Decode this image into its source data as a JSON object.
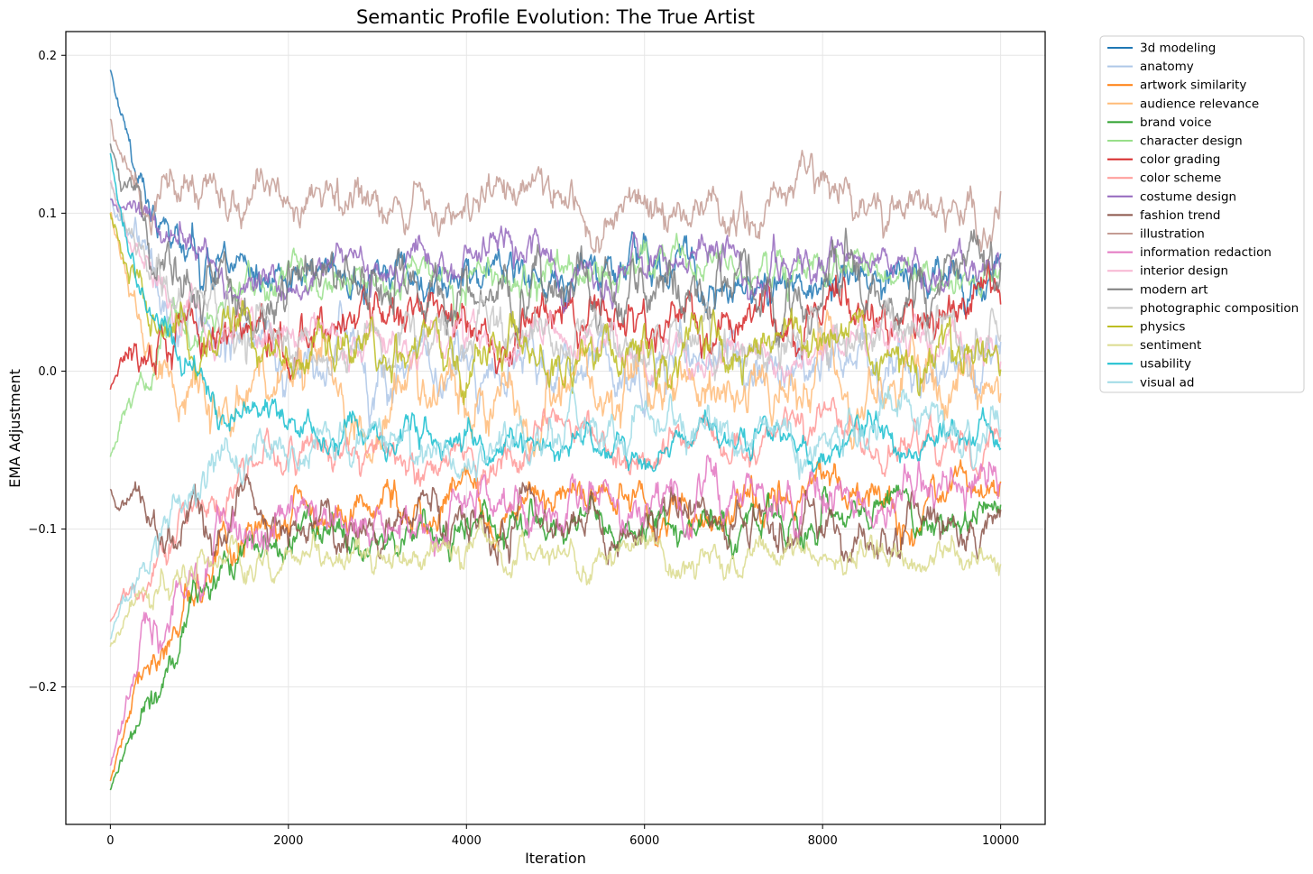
{
  "chart_data": {
    "type": "line",
    "title": "Semantic Profile Evolution: The True Artist",
    "xlabel": "Iteration",
    "ylabel": "EMA Adjustment",
    "xlim": [
      -500,
      10500
    ],
    "ylim": [
      -0.287,
      0.215
    ],
    "xticks": [
      0,
      2000,
      4000,
      6000,
      8000,
      10000
    ],
    "xtick_labels": [
      "0",
      "2000",
      "4000",
      "6000",
      "8000",
      "10000"
    ],
    "yticks": [
      -0.2,
      -0.1,
      0.0,
      0.1,
      0.2
    ],
    "ytick_labels": [
      "−0.2",
      "−0.1",
      "0.0",
      "0.1",
      "0.2"
    ],
    "grid": true,
    "legend_position": "outside-right-top",
    "x_range": [
      0,
      10000
    ],
    "series": [
      {
        "name": "3d modeling",
        "color": "#1f77b4",
        "start": 0.19,
        "level": 0.06,
        "noise": 0.009,
        "tau": 500,
        "seed": 11
      },
      {
        "name": "anatomy",
        "color": "#aec7e8",
        "start": 0.11,
        "level": 0.0,
        "noise": 0.011,
        "tau": 800,
        "seed": 12
      },
      {
        "name": "artwork similarity",
        "color": "#ff7f0e",
        "start": -0.26,
        "level": -0.085,
        "noise": 0.009,
        "tau": 700,
        "seed": 13
      },
      {
        "name": "audience relevance",
        "color": "#ffbb78",
        "start": 0.1,
        "level": -0.01,
        "noise": 0.012,
        "tau": 400,
        "seed": 14
      },
      {
        "name": "brand voice",
        "color": "#2ca02c",
        "start": -0.265,
        "level": -0.095,
        "noise": 0.008,
        "tau": 900,
        "seed": 15
      },
      {
        "name": "character design",
        "color": "#98df8a",
        "start": -0.055,
        "level": 0.065,
        "noise": 0.008,
        "tau": 700,
        "seed": 16
      },
      {
        "name": "color grading",
        "color": "#d62728",
        "start": -0.012,
        "level": 0.03,
        "noise": 0.01,
        "tau": 250,
        "seed": 17
      },
      {
        "name": "color scheme",
        "color": "#ff9896",
        "start": -0.16,
        "level": -0.045,
        "noise": 0.008,
        "tau": 900,
        "seed": 18
      },
      {
        "name": "costume design",
        "color": "#9467bd",
        "start": 0.11,
        "level": 0.065,
        "noise": 0.008,
        "tau": 500,
        "seed": 19
      },
      {
        "name": "fashion trend",
        "color": "#8c564b",
        "start": -0.075,
        "level": -0.098,
        "noise": 0.009,
        "tau": 300,
        "seed": 20
      },
      {
        "name": "illustration",
        "color": "#c49c94",
        "start": 0.16,
        "level": 0.105,
        "noise": 0.01,
        "tau": 200,
        "seed": 21
      },
      {
        "name": "information redaction",
        "color": "#e377c2",
        "start": -0.25,
        "level": -0.085,
        "noise": 0.01,
        "tau": 700,
        "seed": 22
      },
      {
        "name": "interior design",
        "color": "#f7b6d2",
        "start": 0.12,
        "level": 0.015,
        "noise": 0.008,
        "tau": 500,
        "seed": 23
      },
      {
        "name": "modern art",
        "color": "#7f7f7f",
        "start": 0.145,
        "level": 0.05,
        "noise": 0.012,
        "tau": 400,
        "seed": 24
      },
      {
        "name": "photographic composition",
        "color": "#c7c7c7",
        "start": 0.12,
        "level": 0.02,
        "noise": 0.01,
        "tau": 500,
        "seed": 25
      },
      {
        "name": "physics",
        "color": "#bcbd22",
        "start": 0.1,
        "level": 0.015,
        "noise": 0.01,
        "tau": 300,
        "seed": 26
      },
      {
        "name": "sentiment",
        "color": "#dbdb8d",
        "start": -0.175,
        "level": -0.118,
        "noise": 0.007,
        "tau": 400,
        "seed": 27
      },
      {
        "name": "usability",
        "color": "#17becf",
        "start": 0.14,
        "level": -0.045,
        "noise": 0.007,
        "tau": 600,
        "seed": 28
      },
      {
        "name": "visual ad",
        "color": "#9edae5",
        "start": -0.17,
        "level": -0.04,
        "noise": 0.009,
        "tau": 700,
        "seed": 29
      }
    ]
  }
}
